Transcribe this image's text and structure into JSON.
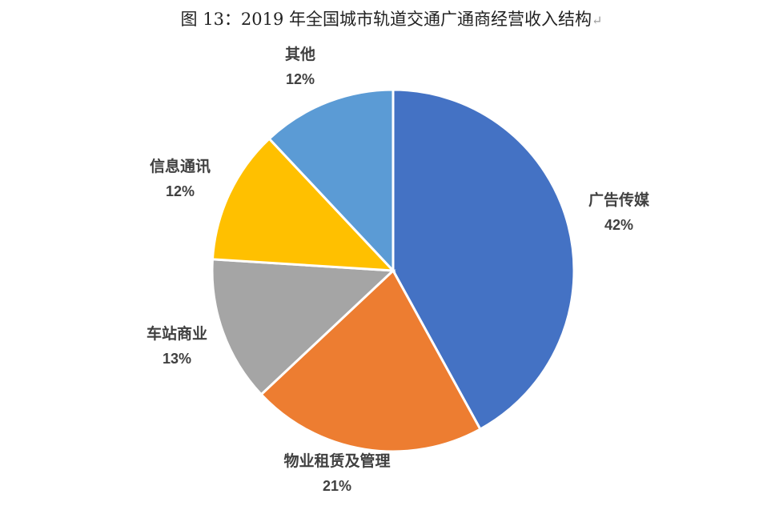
{
  "chart_data": {
    "type": "pie",
    "title": "图 13：2019 年全国城市轨道交通广通商经营收入结构",
    "title_mark": "↵",
    "unit": "%",
    "start_position": "12 o'clock, clockwise",
    "legend": "none (data labels next to slices)",
    "slices": [
      {
        "name": "广告传媒",
        "value": 42,
        "label": "42%",
        "color": "#4472C4"
      },
      {
        "name": "物业租赁及管理",
        "value": 21,
        "label": "21%",
        "color": "#ED7D31"
      },
      {
        "name": "车站商业",
        "value": 13,
        "label": "13%",
        "color": "#A5A5A5"
      },
      {
        "name": "信息通讯",
        "value": 12,
        "label": "12%",
        "color": "#FFC000"
      },
      {
        "name": "其他",
        "value": 12,
        "label": "12%",
        "color": "#5B9BD5"
      }
    ]
  }
}
